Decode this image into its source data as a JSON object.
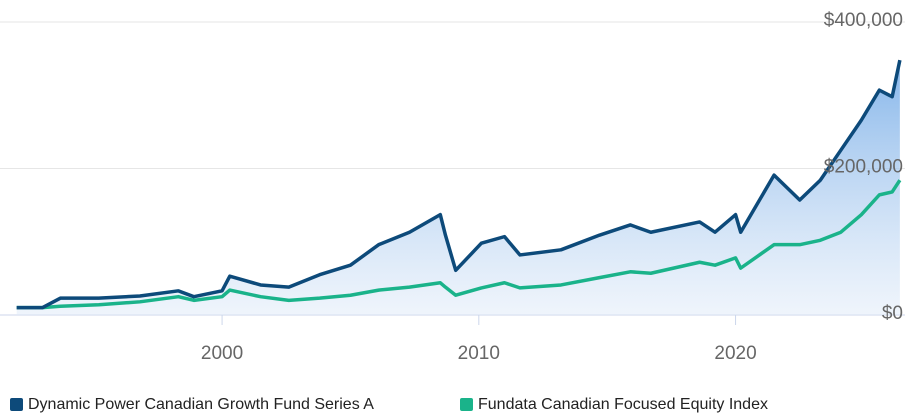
{
  "chart_data": {
    "type": "line",
    "x": [
      1992.0,
      1993.0,
      1993.7,
      1995.2,
      1996.8,
      1998.3,
      1998.9,
      2000.0,
      2000.3,
      2001.5,
      2002.6,
      2003.8,
      2005.0,
      2006.1,
      2007.3,
      2008.5,
      2008.7,
      2009.1,
      2010.1,
      2011.0,
      2011.6,
      2013.2,
      2014.7,
      2015.9,
      2016.7,
      2018.6,
      2019.2,
      2020.0,
      2020.2,
      2021.5,
      2022.5,
      2023.3,
      2024.1,
      2024.9,
      2025.6,
      2026.1,
      2026.4
    ],
    "series": [
      {
        "name": "Dynamic Power Canadian Growth Fund Series A",
        "color": "#0d4a7a",
        "values": [
          10000,
          10000,
          23000,
          23000,
          26000,
          33000,
          25000,
          33000,
          53000,
          41000,
          38000,
          55000,
          68000,
          96000,
          113000,
          137000,
          109000,
          61000,
          98000,
          107000,
          82000,
          89000,
          109000,
          123000,
          113000,
          127000,
          113000,
          137000,
          113000,
          191000,
          157000,
          184000,
          225000,
          266000,
          307000,
          298000,
          348000
        ]
      },
      {
        "name": "Fundata Canadian Focused Equity Index",
        "color": "#1ab38a",
        "values": [
          10000,
          10000,
          12000,
          14000,
          18000,
          25000,
          20000,
          25000,
          34000,
          25000,
          20000,
          23000,
          27000,
          34000,
          38000,
          44000,
          38000,
          27000,
          37000,
          44000,
          37000,
          41000,
          51000,
          59000,
          57000,
          72000,
          68000,
          78000,
          64000,
          96000,
          96000,
          102000,
          113000,
          137000,
          164000,
          168000,
          184000
        ]
      }
    ],
    "xlim": [
      1991.35,
      2026.6
    ],
    "xticks": [
      2000,
      2010,
      2020
    ],
    "ylim": [
      0,
      400000
    ],
    "yticks": [
      {
        "value": 0,
        "label": "$0"
      },
      {
        "value": 200000,
        "label": "$200,000"
      },
      {
        "value": 400000,
        "label": "$400,000"
      }
    ],
    "grid": true,
    "legend": "bottom"
  }
}
